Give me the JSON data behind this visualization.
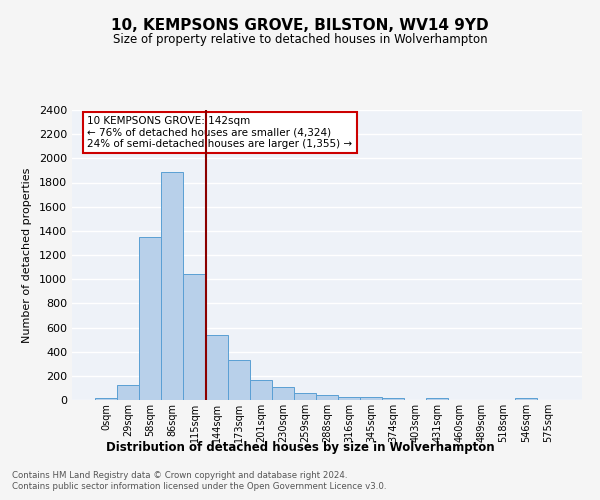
{
  "title": "10, KEMPSONS GROVE, BILSTON, WV14 9YD",
  "subtitle": "Size of property relative to detached houses in Wolverhampton",
  "xlabel": "Distribution of detached houses by size in Wolverhampton",
  "ylabel": "Number of detached properties",
  "bin_labels": [
    "0sqm",
    "29sqm",
    "58sqm",
    "86sqm",
    "115sqm",
    "144sqm",
    "173sqm",
    "201sqm",
    "230sqm",
    "259sqm",
    "288sqm",
    "316sqm",
    "345sqm",
    "374sqm",
    "403sqm",
    "431sqm",
    "460sqm",
    "489sqm",
    "518sqm",
    "546sqm",
    "575sqm"
  ],
  "bar_heights": [
    20,
    125,
    1345,
    1890,
    1045,
    540,
    335,
    165,
    110,
    60,
    38,
    28,
    25,
    20,
    0,
    20,
    0,
    0,
    0,
    20,
    0
  ],
  "bar_color": "#b8d0ea",
  "bar_edge_color": "#5a9fd4",
  "vline_color": "#8b0000",
  "annotation_text": "10 KEMPSONS GROVE: 142sqm\n← 76% of detached houses are smaller (4,324)\n24% of semi-detached houses are larger (1,355) →",
  "annotation_box_color": "#ffffff",
  "annotation_box_edge_color": "#cc0000",
  "ylim": [
    0,
    2400
  ],
  "yticks": [
    0,
    200,
    400,
    600,
    800,
    1000,
    1200,
    1400,
    1600,
    1800,
    2000,
    2200,
    2400
  ],
  "footer1": "Contains HM Land Registry data © Crown copyright and database right 2024.",
  "footer2": "Contains public sector information licensed under the Open Government Licence v3.0.",
  "bg_color": "#eef2f8",
  "fig_bg_color": "#f5f5f5",
  "grid_color": "#ffffff"
}
